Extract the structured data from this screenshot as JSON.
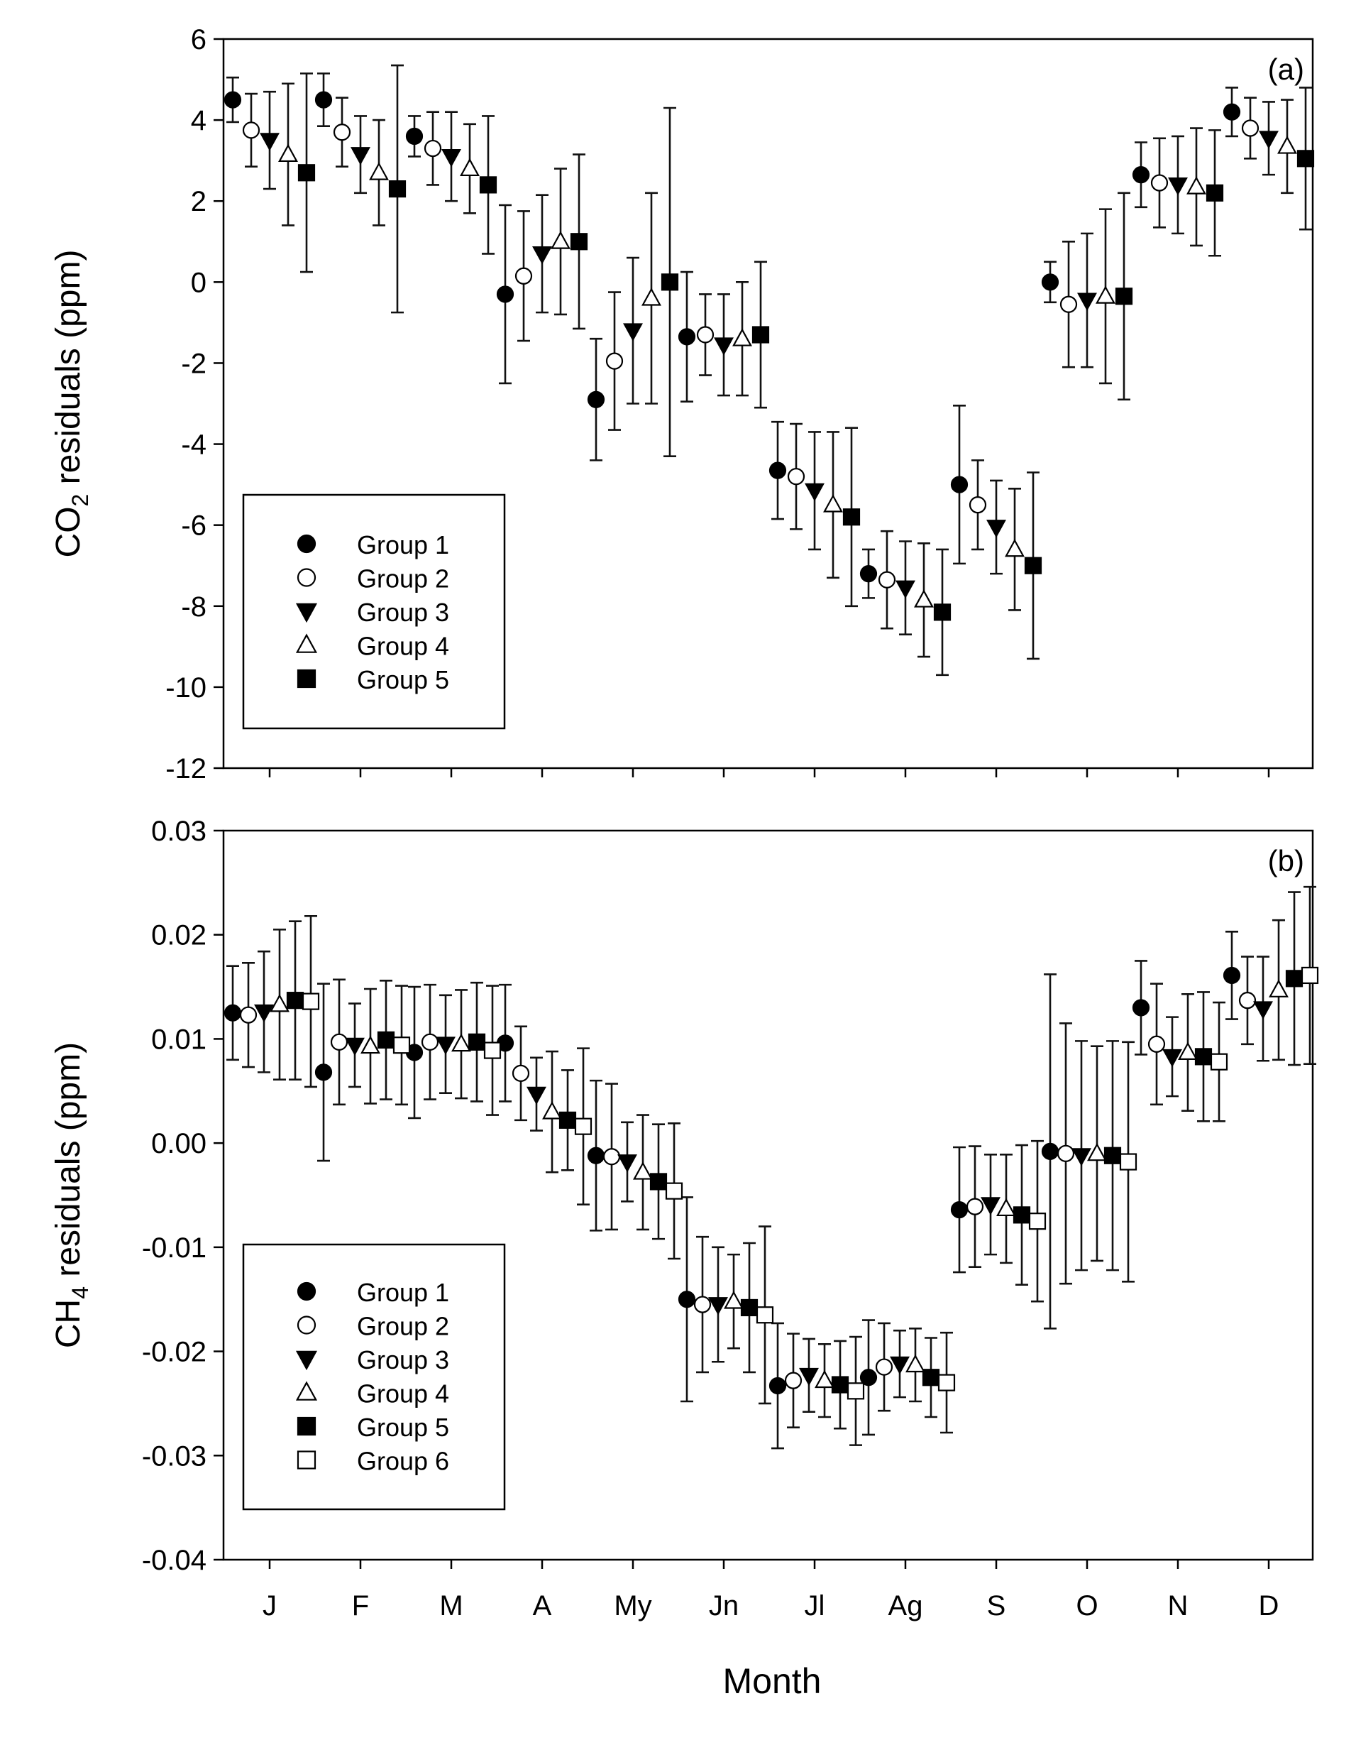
{
  "figure": {
    "xlabel": "Month"
  },
  "chart_data": [
    {
      "type": "scatter",
      "panel_label": "(a)",
      "ylabel_main": "CO",
      "ylabel_sub": "2",
      "ylabel_rest": " residuals (ppm)",
      "xlabel": "Month",
      "ylim": [
        -12,
        6
      ],
      "yticks": [
        6,
        4,
        2,
        0,
        -2,
        -4,
        -6,
        -8,
        -10,
        -12
      ],
      "ytick_labels": [
        "6",
        "4",
        "2",
        "0",
        "-2",
        "-4",
        "-6",
        "-8",
        "-10",
        "-12"
      ],
      "categories": [
        "J",
        "F",
        "M",
        "A",
        "My",
        "Jn",
        "Jl",
        "Ag",
        "S",
        "O",
        "N",
        "D"
      ],
      "legend": {
        "position": "lower-left",
        "entries": [
          "Group 1",
          "Group 2",
          "Group 3",
          "Group 4",
          "Group 5"
        ]
      },
      "series": [
        {
          "name": "Group 1",
          "marker": "circle-filled",
          "values": [
            4.5,
            4.5,
            3.6,
            -0.3,
            -2.9,
            -1.35,
            -4.65,
            -7.2,
            -5.0,
            0.0,
            2.65,
            4.2
          ],
          "err": [
            0.55,
            0.65,
            0.5,
            2.2,
            1.5,
            1.6,
            1.2,
            0.6,
            1.95,
            0.5,
            0.8,
            0.6
          ]
        },
        {
          "name": "Group 2",
          "marker": "circle-open",
          "values": [
            3.75,
            3.7,
            3.3,
            0.15,
            -1.95,
            -1.3,
            -4.8,
            -7.35,
            -5.5,
            -0.55,
            2.45,
            3.8
          ],
          "err": [
            0.9,
            0.85,
            0.9,
            1.6,
            1.7,
            1.0,
            1.3,
            1.2,
            1.1,
            1.55,
            1.1,
            0.75
          ]
        },
        {
          "name": "Group 3",
          "marker": "triangle-down-filled",
          "values": [
            3.5,
            3.15,
            3.1,
            0.7,
            -1.2,
            -1.55,
            -5.15,
            -7.55,
            -6.05,
            -0.45,
            2.4,
            3.55
          ],
          "err": [
            1.2,
            0.95,
            1.1,
            1.45,
            1.8,
            1.25,
            1.45,
            1.15,
            1.15,
            1.65,
            1.2,
            0.9
          ]
        },
        {
          "name": "Group 4",
          "marker": "triangle-up-open",
          "values": [
            3.15,
            2.7,
            2.8,
            1.0,
            -0.4,
            -1.4,
            -5.5,
            -7.85,
            -6.6,
            -0.35,
            2.35,
            3.35
          ],
          "err": [
            1.75,
            1.3,
            1.1,
            1.8,
            2.6,
            1.4,
            1.8,
            1.4,
            1.5,
            2.15,
            1.45,
            1.15
          ]
        },
        {
          "name": "Group 5",
          "marker": "square-filled",
          "values": [
            2.7,
            2.3,
            2.4,
            1.0,
            0.0,
            -1.3,
            -5.8,
            -8.15,
            -7.0,
            -0.35,
            2.2,
            3.05
          ],
          "err": [
            2.45,
            3.05,
            1.7,
            2.15,
            4.3,
            1.8,
            2.2,
            1.55,
            2.3,
            2.55,
            1.55,
            1.75
          ]
        }
      ]
    },
    {
      "type": "scatter",
      "panel_label": "(b)",
      "ylabel_main": "CH",
      "ylabel_sub": "4",
      "ylabel_rest": " residuals (ppm)",
      "xlabel": "Month",
      "ylim": [
        -0.04,
        0.03
      ],
      "yticks": [
        0.03,
        0.02,
        0.01,
        0.0,
        -0.01,
        -0.02,
        -0.03,
        -0.04
      ],
      "ytick_labels": [
        "0.03",
        "0.02",
        "0.01",
        "0.00",
        "-0.01",
        "-0.02",
        "-0.03",
        "-0.04"
      ],
      "categories": [
        "J",
        "F",
        "M",
        "A",
        "My",
        "Jn",
        "Jl",
        "Ag",
        "S",
        "O",
        "N",
        "D"
      ],
      "legend": {
        "position": "lower-left",
        "entries": [
          "Group 1",
          "Group 2",
          "Group 3",
          "Group 4",
          "Group 5",
          "Group 6"
        ]
      },
      "series": [
        {
          "name": "Group 1",
          "marker": "circle-filled",
          "values": [
            0.0125,
            0.0068,
            0.0087,
            0.0096,
            -0.0012,
            -0.015,
            -0.0233,
            -0.0225,
            -0.0064,
            -0.0008,
            0.013,
            0.0161
          ],
          "err": [
            0.0045,
            0.0085,
            0.0063,
            0.0056,
            0.0072,
            0.0098,
            0.006,
            0.0055,
            0.006,
            0.017,
            0.0045,
            0.0042
          ]
        },
        {
          "name": "Group 2",
          "marker": "circle-open",
          "values": [
            0.0123,
            0.0097,
            0.0097,
            0.0067,
            -0.0013,
            -0.0155,
            -0.0228,
            -0.0215,
            -0.0061,
            -0.001,
            0.0095,
            0.0137
          ],
          "err": [
            0.005,
            0.006,
            0.0055,
            0.0045,
            0.007,
            0.0065,
            0.0045,
            0.0042,
            0.0058,
            0.0125,
            0.0058,
            0.0042
          ]
        },
        {
          "name": "Group 3",
          "marker": "triangle-down-filled",
          "values": [
            0.0126,
            0.0094,
            0.0095,
            0.0047,
            -0.0018,
            -0.0155,
            -0.0223,
            -0.0212,
            -0.0059,
            -0.0012,
            0.0083,
            0.0129
          ],
          "err": [
            0.0058,
            0.004,
            0.0047,
            0.0035,
            0.0038,
            0.0055,
            0.0035,
            0.0032,
            0.0048,
            0.011,
            0.0038,
            0.005
          ]
        },
        {
          "name": "Group 4",
          "marker": "triangle-up-open",
          "values": [
            0.0133,
            0.0093,
            0.0095,
            0.003,
            -0.0028,
            -0.0152,
            -0.0228,
            -0.0213,
            -0.0063,
            -0.001,
            0.0087,
            0.0147
          ],
          "err": [
            0.0072,
            0.0055,
            0.0052,
            0.0058,
            0.0055,
            0.0045,
            0.0035,
            0.0035,
            0.0052,
            0.0103,
            0.0056,
            0.0067
          ]
        },
        {
          "name": "Group 5",
          "marker": "square-filled",
          "values": [
            0.0137,
            0.0099,
            0.0097,
            0.0022,
            -0.0037,
            -0.0158,
            -0.0232,
            -0.0225,
            -0.0069,
            -0.0012,
            0.0083,
            0.0158
          ],
          "err": [
            0.0076,
            0.0057,
            0.0057,
            0.0048,
            0.0055,
            0.0062,
            0.0042,
            0.0038,
            0.0067,
            0.011,
            0.0062,
            0.0083
          ]
        },
        {
          "name": "Group 6",
          "marker": "square-open",
          "values": [
            0.0136,
            0.0094,
            0.0089,
            0.0016,
            -0.0046,
            -0.0165,
            -0.0238,
            -0.023,
            -0.0075,
            -0.0018,
            0.0078,
            0.0161
          ],
          "err": [
            0.0082,
            0.0057,
            0.0062,
            0.0075,
            0.0065,
            0.0085,
            0.0052,
            0.0048,
            0.0077,
            0.0115,
            0.0057,
            0.0085
          ]
        }
      ]
    }
  ]
}
